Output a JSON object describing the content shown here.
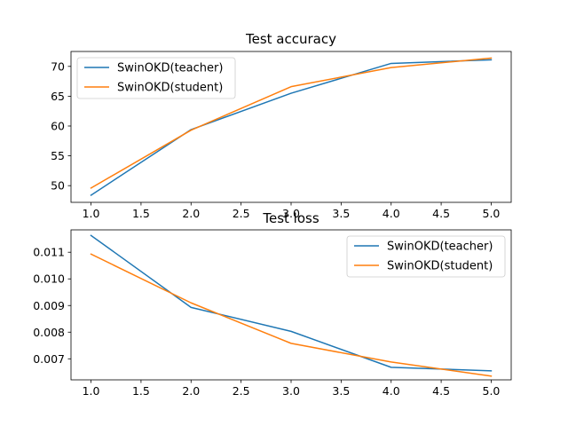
{
  "chart_data": [
    {
      "type": "line",
      "title": "Test accuracy",
      "xlabel": "",
      "ylabel": "",
      "x": [
        1.0,
        2.0,
        3.0,
        4.0,
        5.0
      ],
      "xlim": [
        0.8,
        5.2
      ],
      "ylim": [
        47.2,
        72.5
      ],
      "xticks": [
        "1.0",
        "1.5",
        "2.0",
        "2.5",
        "3.0",
        "3.5",
        "4.0",
        "4.5",
        "5.0"
      ],
      "yticks": [
        "50",
        "55",
        "60",
        "65",
        "70"
      ],
      "grid": false,
      "legend": "top-left",
      "series": [
        {
          "name": "SwinOKD(teacher)",
          "color": "#1f77b4",
          "values": [
            48.4,
            59.4,
            65.5,
            70.5,
            71.1
          ]
        },
        {
          "name": "SwinOKD(student)",
          "color": "#ff7f0e",
          "values": [
            49.6,
            59.3,
            66.6,
            69.8,
            71.4
          ]
        }
      ]
    },
    {
      "type": "line",
      "title": "Test loss",
      "xlabel": "",
      "ylabel": "",
      "x": [
        1.0,
        2.0,
        3.0,
        4.0,
        5.0
      ],
      "xlim": [
        0.8,
        5.2
      ],
      "ylim": [
        0.00621,
        0.01184
      ],
      "xticks": [
        "1.0",
        "1.5",
        "2.0",
        "2.5",
        "3.0",
        "3.5",
        "4.0",
        "4.5",
        "5.0"
      ],
      "yticks": [
        "0.007",
        "0.008",
        "0.009",
        "0.010",
        "0.011"
      ],
      "grid": false,
      "legend": "top-right",
      "series": [
        {
          "name": "SwinOKD(teacher)",
          "color": "#1f77b4",
          "values": [
            0.01163,
            0.00893,
            0.00803,
            0.00668,
            0.00655
          ]
        },
        {
          "name": "SwinOKD(student)",
          "color": "#ff7f0e",
          "values": [
            0.01093,
            0.0091,
            0.00758,
            0.00688,
            0.00635
          ]
        }
      ]
    }
  ]
}
